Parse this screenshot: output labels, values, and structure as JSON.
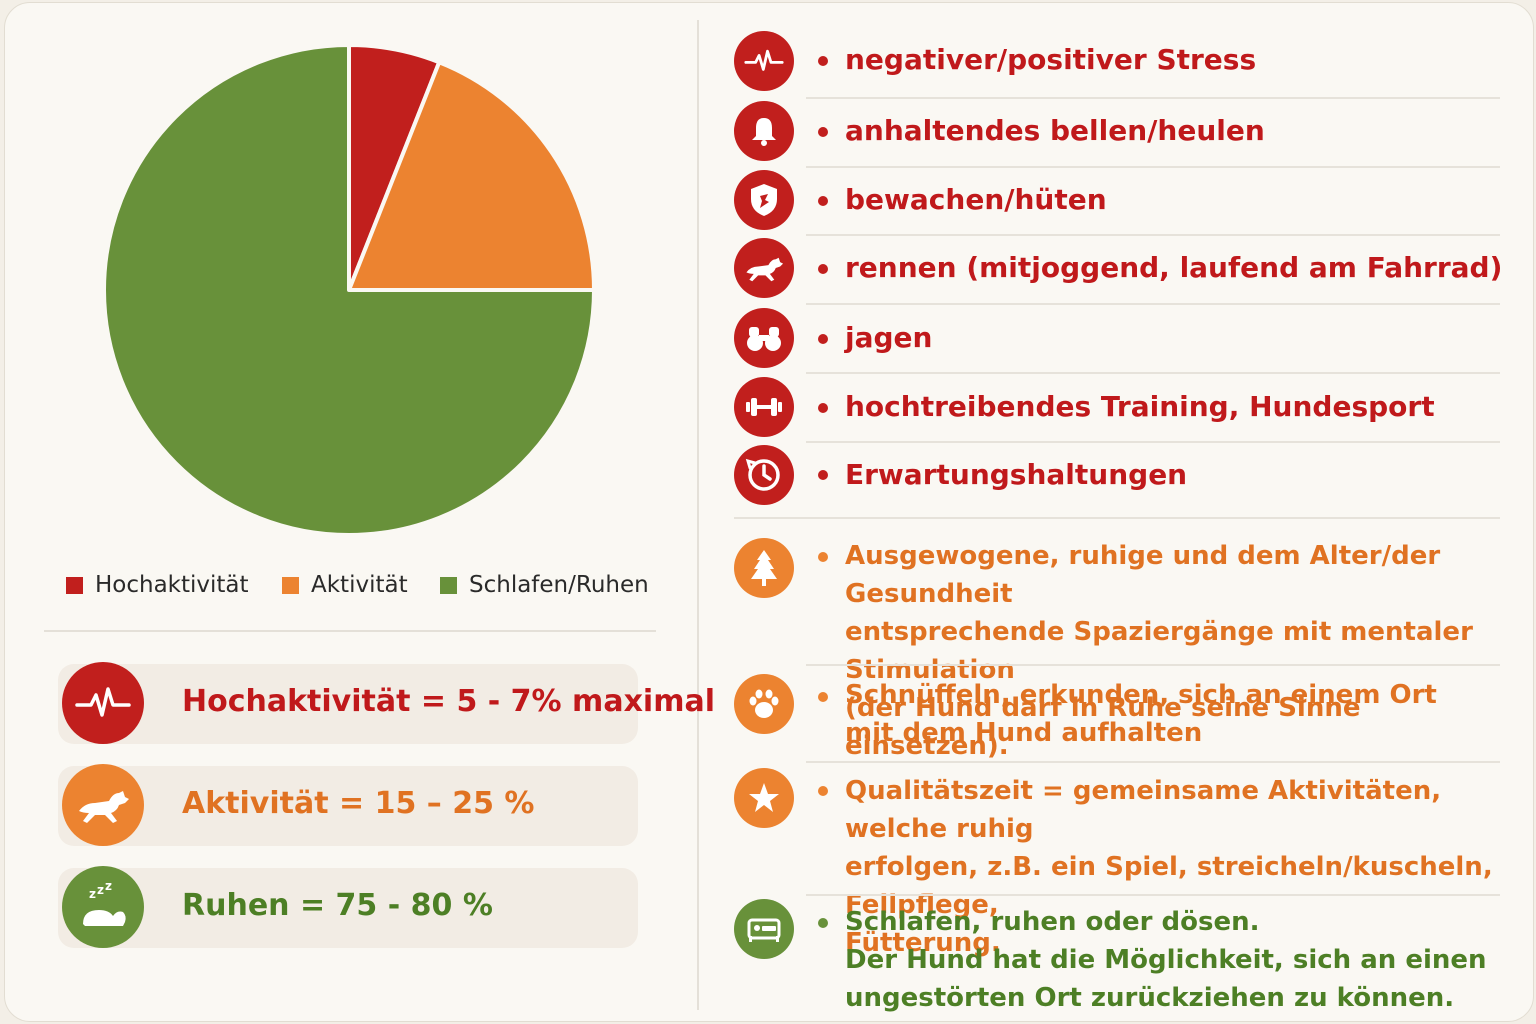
{
  "colors": {
    "red": "#c11f1d",
    "orange": "#ec8330",
    "green": "#68913a",
    "text_red": "#c0191b",
    "text_orange": "#e07222",
    "text_green": "#4d7f25"
  },
  "chart_data": {
    "type": "pie",
    "title": "",
    "slices": [
      {
        "label": "Hochaktivität",
        "value": 6,
        "color": "#c11f1d"
      },
      {
        "label": "Aktivität",
        "value": 19,
        "color": "#ec8330"
      },
      {
        "label": "Schlafen/Ruhen",
        "value": 75,
        "color": "#68913a"
      }
    ],
    "legend": [
      "Hochaktivität",
      "Aktivität",
      "Schlafen/Ruhen"
    ],
    "legend_position": "bottom"
  },
  "stats": [
    {
      "text": "Hochaktivität = 5 - 7% maximal",
      "icon": "heartbeat-icon",
      "color": "#c11f1d"
    },
    {
      "text": "Aktivität = 15 – 25 %",
      "icon": "running-dog-icon",
      "color": "#ec8330"
    },
    {
      "text": "Ruhen = 75 - 80 %",
      "icon": "sleeping-dog-icon",
      "color": "#68913a"
    }
  ],
  "high_activity_items": [
    {
      "text": "negativer/positiver Stress",
      "icon": "heartbeat-icon"
    },
    {
      "text": "anhaltendes bellen/heulen",
      "icon": "bell-icon"
    },
    {
      "text": "bewachen/hüten",
      "icon": "shield-icon"
    },
    {
      "text": "rennen (mitjoggend, laufend am Fahrrad)",
      "icon": "running-dog-icon"
    },
    {
      "text": "jagen",
      "icon": "binoculars-icon"
    },
    {
      "text": "hochtreibendes Training, Hundesport",
      "icon": "dumbbell-icon"
    },
    {
      "text": "Erwartungshaltungen",
      "icon": "clock-icon"
    }
  ],
  "activity_items": [
    {
      "lines": [
        "Ausgewogene, ruhige und dem Alter/der Gesundheit",
        "entsprechende Spaziergänge mit mentaler Stimulation",
        "(der Hund darf in Ruhe seine Sinne einsetzen)."
      ],
      "icon": "tree-icon"
    },
    {
      "lines": [
        "Schnüffeln, erkunden, sich an einem Ort",
        "mit dem Hund aufhalten"
      ],
      "icon": "paw-icon"
    },
    {
      "lines": [
        "Qualitätszeit = gemeinsame Aktivitäten, welche ruhig",
        "erfolgen, z.B. ein Spiel, streicheln/kuscheln, Fellpflege,",
        "Fütterung."
      ],
      "icon": "star-icon"
    }
  ],
  "rest_items": [
    {
      "lines": [
        "Schlafen, ruhen oder dösen.",
        "Der Hund hat die Möglichkeit, sich an einen",
        "ungestörten Ort zurückziehen zu können."
      ],
      "icon": "bed-icon"
    }
  ]
}
